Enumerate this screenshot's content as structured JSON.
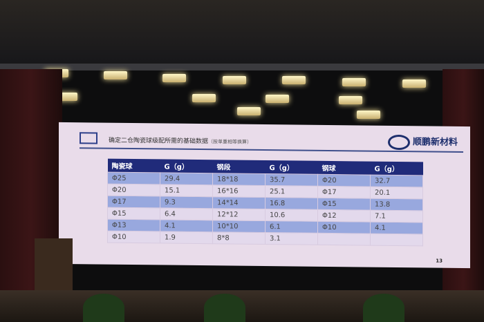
{
  "slide": {
    "title": "确定二仓陶瓷球级配所需的基础数据",
    "subtitle": "（按单重相等换算）",
    "brand": "顺鹏新材料",
    "page_number": "13",
    "table": {
      "headers": [
        "陶瓷球",
        "G（g）",
        "钢段",
        "G（g）",
        "钢球",
        "G（g）"
      ],
      "rows": [
        [
          "Φ25",
          "29.4",
          "18*18",
          "35.7",
          "Φ20",
          "32.7"
        ],
        [
          "Φ20",
          "15.1",
          "16*16",
          "25.1",
          "Φ17",
          "20.1"
        ],
        [
          "Φ17",
          "9.3",
          "14*14",
          "16.8",
          "Φ15",
          "13.8"
        ],
        [
          "Φ15",
          "6.4",
          "12*12",
          "10.6",
          "Φ12",
          "7.1"
        ],
        [
          "Φ13",
          "4.1",
          "10*10",
          "6.1",
          "Φ10",
          "4.1"
        ],
        [
          "Φ10",
          "1.9",
          "8*8",
          "3.1",
          "",
          ""
        ]
      ]
    }
  }
}
